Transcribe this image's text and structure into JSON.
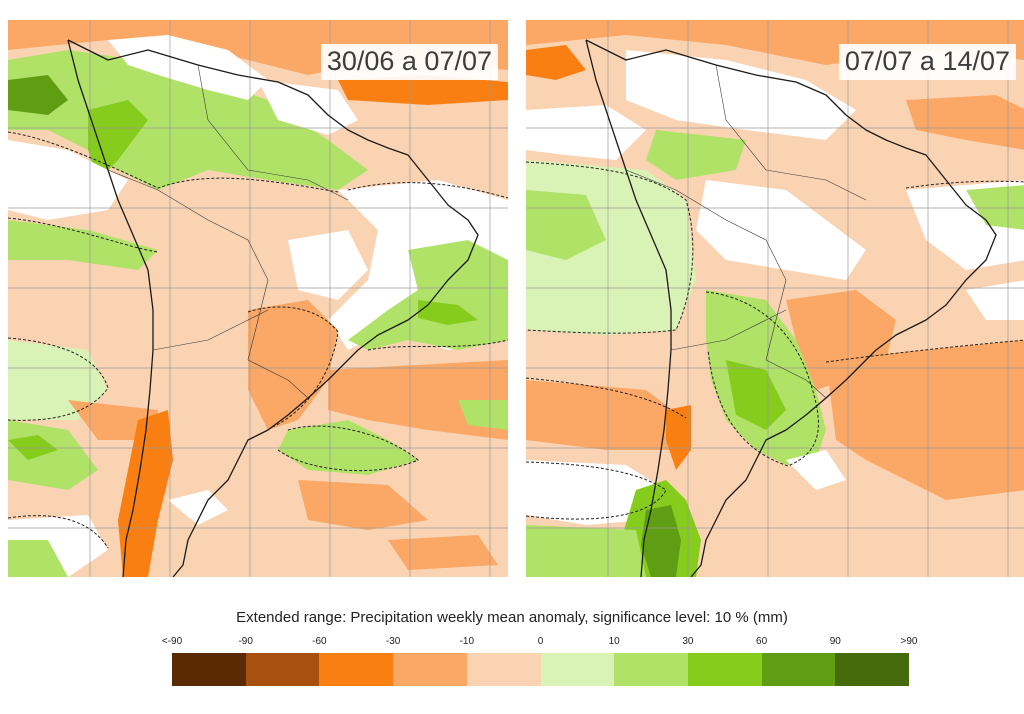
{
  "panels": [
    {
      "label": "30/06 a 07/07"
    },
    {
      "label": "07/07 a 14/07"
    }
  ],
  "legend": {
    "title": "Extended range: Precipitation weekly mean anomaly, significance level: 10 % (mm)",
    "ticks": [
      "<-90",
      "-90",
      "-60",
      "-30",
      "-10",
      "0",
      "10",
      "30",
      "60",
      "90",
      ">90"
    ],
    "colors": [
      "#5a2a05",
      "#a8500f",
      "#fa7f12",
      "#fba765",
      "#fad3b3",
      "#d9f2b5",
      "#b0e268",
      "#86cc1c",
      "#5f9e12",
      "#466b0d"
    ]
  },
  "map_colors": {
    "base": "#fad3b3",
    "ocean_light": "#fba765",
    "negative_strong": "#fa7f12",
    "near_zero": "#ffffff",
    "positive_light": "#d9f2b5",
    "positive": "#b0e268",
    "positive_strong": "#86cc1c",
    "positive_very_strong": "#5f9e12",
    "coastline": "#1a1a1a",
    "gridline": "#9a9a9a"
  }
}
